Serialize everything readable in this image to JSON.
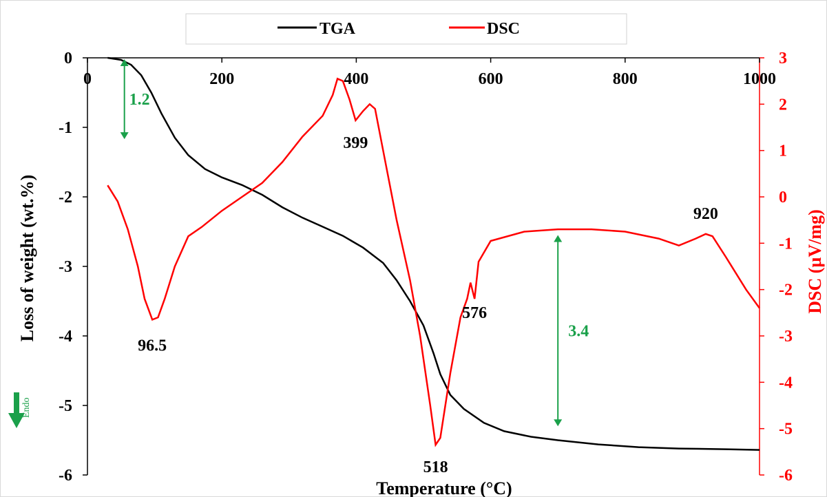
{
  "chart_data": {
    "type": "line",
    "xlabel": "Temperature (°C)",
    "ylabel_left": "Loss of weight (wt.%)",
    "ylabel_right": "DSC (µV/mg)",
    "xlim": [
      0,
      1000
    ],
    "ylim_left": [
      -6,
      0
    ],
    "ylim_right": [
      -6,
      3
    ],
    "x_ticks": [
      "0",
      "200",
      "400",
      "600",
      "800",
      "1000"
    ],
    "y_left_ticks": [
      "0",
      "-1",
      "-2",
      "-3",
      "-4",
      "-5",
      "-6"
    ],
    "y_right_ticks": [
      "3",
      "2",
      "1",
      "0",
      "-1",
      "-2",
      "-3",
      "-4",
      "-5",
      "-6"
    ],
    "grid": false,
    "legend_position": "top-center",
    "series": [
      {
        "name": "TGA",
        "axis": "left",
        "color": "#000000",
        "points": [
          [
            30,
            0
          ],
          [
            50,
            -0.03
          ],
          [
            65,
            -0.1
          ],
          [
            80,
            -0.25
          ],
          [
            95,
            -0.5
          ],
          [
            110,
            -0.8
          ],
          [
            130,
            -1.15
          ],
          [
            150,
            -1.4
          ],
          [
            175,
            -1.6
          ],
          [
            200,
            -1.72
          ],
          [
            230,
            -1.83
          ],
          [
            260,
            -1.97
          ],
          [
            290,
            -2.15
          ],
          [
            320,
            -2.3
          ],
          [
            350,
            -2.43
          ],
          [
            380,
            -2.56
          ],
          [
            410,
            -2.73
          ],
          [
            440,
            -2.95
          ],
          [
            460,
            -3.2
          ],
          [
            480,
            -3.5
          ],
          [
            500,
            -3.85
          ],
          [
            515,
            -4.25
          ],
          [
            525,
            -4.55
          ],
          [
            540,
            -4.85
          ],
          [
            560,
            -5.05
          ],
          [
            590,
            -5.25
          ],
          [
            620,
            -5.37
          ],
          [
            660,
            -5.45
          ],
          [
            700,
            -5.5
          ],
          [
            760,
            -5.56
          ],
          [
            820,
            -5.6
          ],
          [
            880,
            -5.62
          ],
          [
            950,
            -5.63
          ],
          [
            1000,
            -5.64
          ]
        ]
      },
      {
        "name": "DSC",
        "axis": "right",
        "color": "#ff0000",
        "points": [
          [
            30,
            0.25
          ],
          [
            45,
            -0.1
          ],
          [
            60,
            -0.7
          ],
          [
            75,
            -1.5
          ],
          [
            85,
            -2.2
          ],
          [
            96.5,
            -2.65
          ],
          [
            105,
            -2.6
          ],
          [
            115,
            -2.2
          ],
          [
            130,
            -1.5
          ],
          [
            150,
            -0.85
          ],
          [
            170,
            -0.65
          ],
          [
            200,
            -0.3
          ],
          [
            230,
            0
          ],
          [
            260,
            0.3
          ],
          [
            290,
            0.75
          ],
          [
            320,
            1.3
          ],
          [
            350,
            1.75
          ],
          [
            365,
            2.2
          ],
          [
            372,
            2.55
          ],
          [
            380,
            2.5
          ],
          [
            390,
            2.1
          ],
          [
            399,
            1.65
          ],
          [
            410,
            1.85
          ],
          [
            420,
            2.0
          ],
          [
            428,
            1.9
          ],
          [
            440,
            1.0
          ],
          [
            460,
            -0.5
          ],
          [
            480,
            -1.8
          ],
          [
            495,
            -3.0
          ],
          [
            510,
            -4.5
          ],
          [
            518,
            -5.35
          ],
          [
            525,
            -5.2
          ],
          [
            540,
            -3.8
          ],
          [
            555,
            -2.6
          ],
          [
            565,
            -2.2
          ],
          [
            570,
            -1.85
          ],
          [
            576,
            -2.2
          ],
          [
            582,
            -1.4
          ],
          [
            600,
            -0.95
          ],
          [
            650,
            -0.75
          ],
          [
            700,
            -0.7
          ],
          [
            750,
            -0.7
          ],
          [
            800,
            -0.75
          ],
          [
            850,
            -0.9
          ],
          [
            880,
            -1.05
          ],
          [
            905,
            -0.9
          ],
          [
            920,
            -0.8
          ],
          [
            930,
            -0.85
          ],
          [
            950,
            -1.3
          ],
          [
            980,
            -2.0
          ],
          [
            1000,
            -2.4
          ]
        ]
      }
    ],
    "annotations": [
      {
        "text": "96.5",
        "x": 96.5,
        "y": -2.65,
        "axis": "right",
        "dy": 45
      },
      {
        "text": "399",
        "x": 399,
        "y": 1.65,
        "axis": "right",
        "dy": 40
      },
      {
        "text": "518",
        "x": 518,
        "y": -5.35,
        "axis": "right",
        "dy": 40
      },
      {
        "text": "576",
        "x": 576,
        "y": -2.2,
        "axis": "right",
        "dy": 28
      },
      {
        "text": "920",
        "x": 920,
        "y": -0.8,
        "axis": "right",
        "dy": -22
      }
    ],
    "markers": [
      {
        "label": "1.2",
        "x": 55,
        "y_top": -0.02,
        "y_bottom": -1.17,
        "axis": "left",
        "label_offset": 22
      },
      {
        "label": "3.4",
        "x": 700,
        "y_top": -2.55,
        "y_bottom": -5.3,
        "axis": "left",
        "label_offset": 30
      }
    ]
  },
  "endo_label": "Endo",
  "colors": {
    "tga": "#000000",
    "dsc": "#ff0000",
    "marker": "#1aa04a",
    "axis": "#000000"
  }
}
